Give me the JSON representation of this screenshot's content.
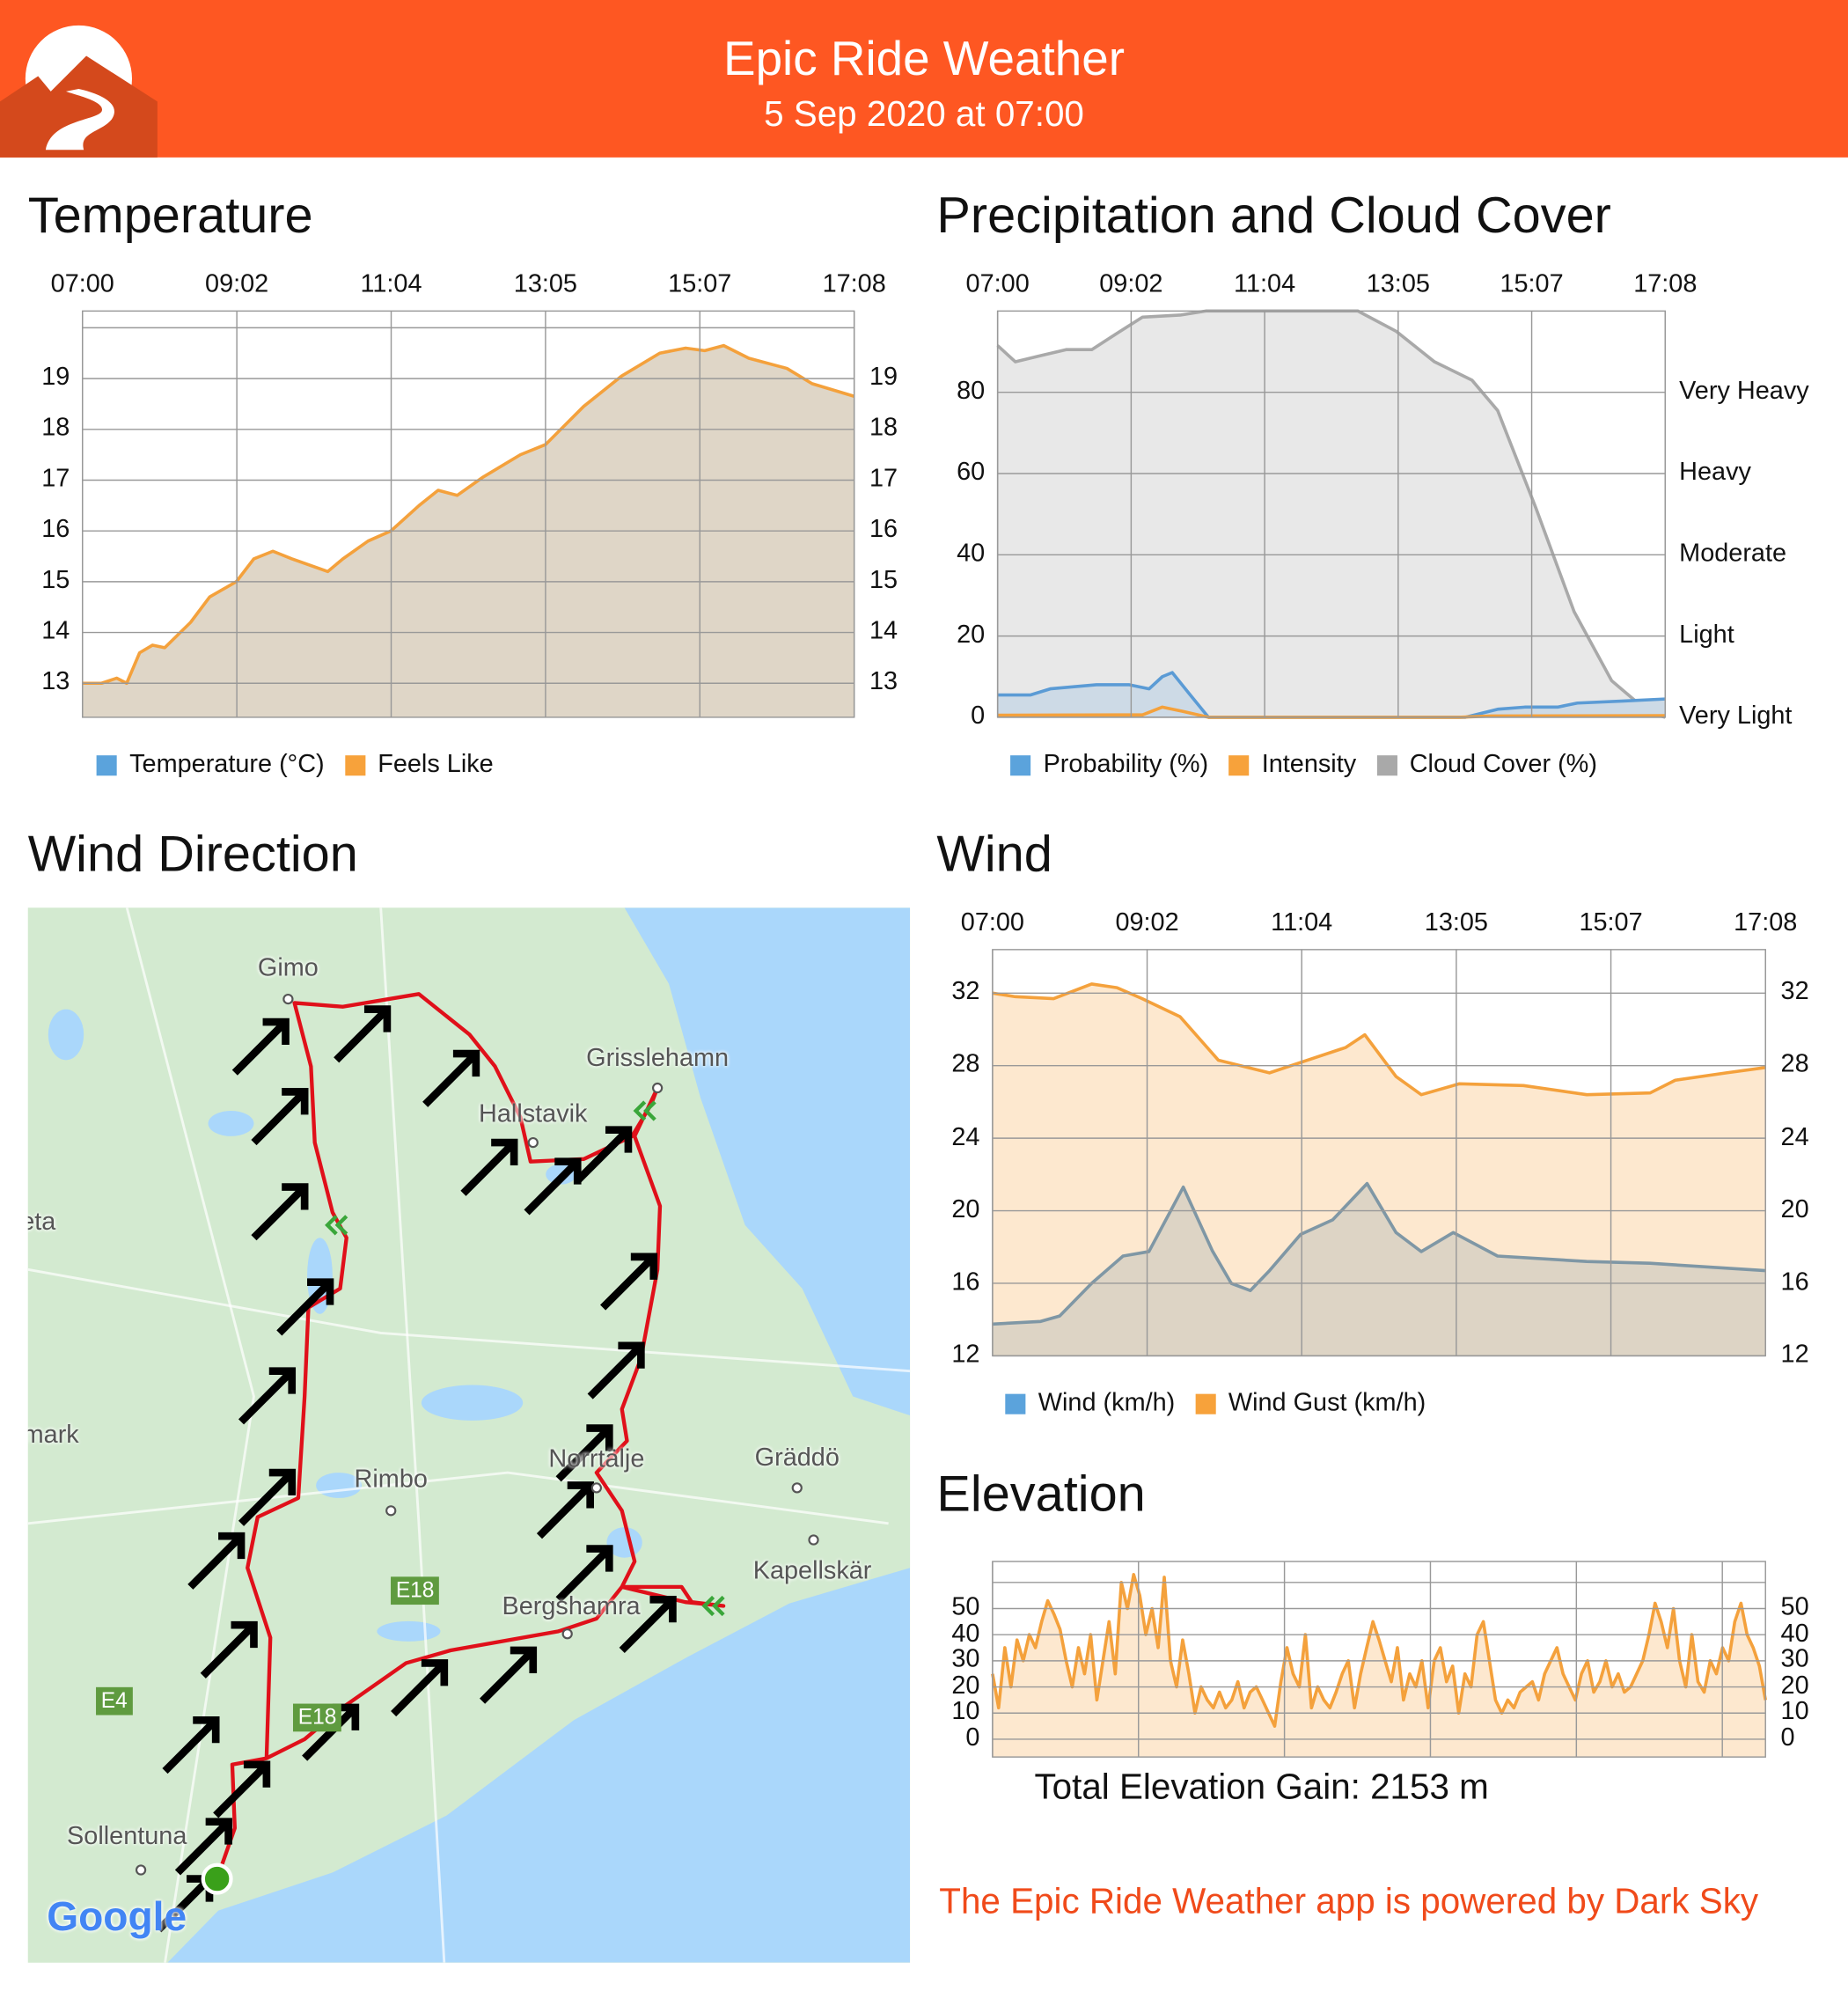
{
  "header": {
    "title": "Epic Ride Weather",
    "subtitle": "5 Sep 2020 at 07:00",
    "color": "#fe5722"
  },
  "time_labels": [
    "07:00",
    "09:02",
    "11:04",
    "13:05",
    "15:07",
    "17:08"
  ],
  "chart_data": [
    {
      "id": "temperature",
      "type": "area",
      "title": "Temperature",
      "x_unit": "hours since 07:00",
      "xlim": [
        0,
        10.133
      ],
      "ylim": [
        12.33,
        20.33
      ],
      "yticks": [
        13,
        14,
        15,
        16,
        17,
        18,
        19
      ],
      "grid": true,
      "legend": [
        {
          "label": "Temperature (°C)",
          "color": "#5ba3dc"
        },
        {
          "label": "Feels Like",
          "color": "#f7a23b"
        }
      ],
      "legend_position": "bottom",
      "series": [
        {
          "name": "Feels Like",
          "color": "#f4a13c",
          "fill": "#dfd6c7",
          "points": [
            [
              0,
              13.0
            ],
            [
              0.25,
              13.0
            ],
            [
              0.45,
              13.1
            ],
            [
              0.58,
              13.0
            ],
            [
              0.75,
              13.6
            ],
            [
              0.92,
              13.75
            ],
            [
              1.08,
              13.7
            ],
            [
              1.42,
              14.2
            ],
            [
              1.67,
              14.7
            ],
            [
              2.02,
              15.0
            ],
            [
              2.25,
              15.45
            ],
            [
              2.5,
              15.6
            ],
            [
              2.75,
              15.45
            ],
            [
              3.22,
              15.2
            ],
            [
              3.42,
              15.45
            ],
            [
              3.75,
              15.8
            ],
            [
              4.05,
              16.0
            ],
            [
              4.42,
              16.5
            ],
            [
              4.67,
              16.8
            ],
            [
              4.92,
              16.7
            ],
            [
              5.25,
              17.05
            ],
            [
              5.75,
              17.5
            ],
            [
              6.08,
              17.7
            ],
            [
              6.58,
              18.45
            ],
            [
              7.08,
              19.05
            ],
            [
              7.58,
              19.5
            ],
            [
              7.92,
              19.6
            ],
            [
              8.17,
              19.55
            ],
            [
              8.42,
              19.65
            ],
            [
              8.75,
              19.4
            ],
            [
              9.25,
              19.2
            ],
            [
              9.58,
              18.9
            ],
            [
              10.133,
              18.65
            ]
          ]
        }
      ]
    },
    {
      "id": "precipitation",
      "type": "area",
      "title": "Precipitation and Cloud Cover",
      "x_unit": "hours since 07:00",
      "xlim": [
        0,
        10.133
      ],
      "ylim": [
        0,
        100
      ],
      "yticks": [
        0,
        20,
        40,
        60,
        80
      ],
      "grid": true,
      "right_ticks": [
        "Very Light",
        "Light",
        "Moderate",
        "Heavy",
        "Very Heavy"
      ],
      "legend": [
        {
          "label": "Probability (%)",
          "color": "#5ba3dc"
        },
        {
          "label": "Intensity",
          "color": "#f7a23b"
        },
        {
          "label": "Cloud Cover (%)",
          "color": "#a9a9a9"
        }
      ],
      "legend_position": "bottom",
      "series": [
        {
          "name": "Cloud Cover (%)",
          "color": "#a9a9a9",
          "fill": "#e8e8e8",
          "points": [
            [
              0,
              91.5
            ],
            [
              0.27,
              87.5
            ],
            [
              0.65,
              89
            ],
            [
              1.04,
              90.5
            ],
            [
              1.43,
              90.5
            ],
            [
              1.81,
              94.5
            ],
            [
              2.2,
              98.5
            ],
            [
              2.77,
              99
            ],
            [
              3.16,
              100
            ],
            [
              5.47,
              100
            ],
            [
              6.05,
              95
            ],
            [
              6.63,
              87.5
            ],
            [
              7.2,
              83
            ],
            [
              7.59,
              75.5
            ],
            [
              8.17,
              51.5
            ],
            [
              8.75,
              26
            ],
            [
              9.32,
              9
            ],
            [
              9.9,
              1
            ],
            [
              10.133,
              0
            ]
          ]
        },
        {
          "name": "Probability (%)",
          "color": "#5b9bd5",
          "fill": "#cddae6",
          "points": [
            [
              0,
              5.5
            ],
            [
              0.5,
              5.5
            ],
            [
              0.8,
              7
            ],
            [
              1.5,
              8
            ],
            [
              2.0,
              8
            ],
            [
              2.3,
              7
            ],
            [
              2.5,
              10
            ],
            [
              2.65,
              11
            ],
            [
              2.9,
              6
            ],
            [
              3.2,
              0
            ],
            [
              7.1,
              0
            ],
            [
              7.6,
              2
            ],
            [
              8.0,
              2.5
            ],
            [
              8.5,
              2.5
            ],
            [
              8.8,
              3.5
            ],
            [
              9.5,
              4
            ],
            [
              10.133,
              4.5
            ]
          ]
        },
        {
          "name": "Intensity",
          "color": "#f4a13c",
          "fill": "none",
          "points": [
            [
              0,
              0.5
            ],
            [
              2.2,
              0.6
            ],
            [
              2.5,
              2.5
            ],
            [
              2.8,
              1.5
            ],
            [
              3.2,
              0
            ],
            [
              7.0,
              0
            ],
            [
              7.5,
              0.3
            ],
            [
              10.133,
              0.4
            ]
          ]
        }
      ]
    },
    {
      "id": "wind",
      "type": "area",
      "title": "Wind",
      "x_unit": "hours since 07:00",
      "xlim": [
        0,
        10.133
      ],
      "ylim": [
        12,
        34.4
      ],
      "yticks": [
        12,
        16,
        20,
        24,
        28,
        32
      ],
      "grid": true,
      "legend": [
        {
          "label": "Wind (km/h)",
          "color": "#5ba3dc"
        },
        {
          "label": "Wind Gust (km/h)",
          "color": "#f7a23b"
        }
      ],
      "legend_position": "bottom",
      "series": [
        {
          "name": "Wind Gust (km/h)",
          "color": "#f4a13c",
          "fill": "#fde8cf",
          "points": [
            [
              0,
              32
            ],
            [
              0.3,
              31.8
            ],
            [
              0.8,
              31.7
            ],
            [
              1.3,
              32.5
            ],
            [
              1.63,
              32.3
            ],
            [
              1.96,
              31.7
            ],
            [
              2.46,
              30.7
            ],
            [
              2.96,
              28.3
            ],
            [
              3.63,
              27.6
            ],
            [
              4.13,
              28.3
            ],
            [
              4.63,
              29
            ],
            [
              4.88,
              29.7
            ],
            [
              5.29,
              27.4
            ],
            [
              5.62,
              26.4
            ],
            [
              6.12,
              27
            ],
            [
              6.96,
              26.9
            ],
            [
              7.79,
              26.4
            ],
            [
              8.62,
              26.5
            ],
            [
              8.95,
              27.2
            ],
            [
              9.62,
              27.6
            ],
            [
              10.133,
              27.9
            ]
          ]
        },
        {
          "name": "Wind (km/h)",
          "color": "#7f97a5",
          "fill": "#ddd4c5",
          "points": [
            [
              0,
              13.75
            ],
            [
              0.63,
              13.9
            ],
            [
              0.88,
              14.2
            ],
            [
              1.3,
              16
            ],
            [
              1.71,
              17.5
            ],
            [
              2.05,
              17.75
            ],
            [
              2.5,
              21.3
            ],
            [
              2.88,
              17.8
            ],
            [
              3.13,
              16
            ],
            [
              3.38,
              15.6
            ],
            [
              3.63,
              16.7
            ],
            [
              4.04,
              18.7
            ],
            [
              4.46,
              19.5
            ],
            [
              4.91,
              21.5
            ],
            [
              5.29,
              18.8
            ],
            [
              5.62,
              17.75
            ],
            [
              6.04,
              18.8
            ],
            [
              6.62,
              17.5
            ],
            [
              7.79,
              17.2
            ],
            [
              8.62,
              17.1
            ],
            [
              10.133,
              16.7
            ]
          ]
        }
      ]
    },
    {
      "id": "elevation",
      "type": "area",
      "title": "Elevation",
      "ylim": [
        -6.8,
        68
      ],
      "yticks": [
        0,
        10,
        20,
        30,
        40,
        50
      ],
      "grid": true,
      "summary": "Total Elevation Gain: 2153 m",
      "series": [
        {
          "name": "Elevation (m)",
          "color": "#f4a13c",
          "fill": "#fde8cf",
          "values": [
            25,
            12,
            35,
            20,
            38,
            30,
            40,
            35,
            45,
            53,
            48,
            42,
            30,
            20,
            35,
            25,
            40,
            15,
            30,
            45,
            25,
            60,
            50,
            63,
            55,
            40,
            50,
            35,
            62,
            30,
            20,
            38,
            25,
            10,
            20,
            15,
            12,
            18,
            12,
            15,
            22,
            12,
            18,
            20,
            15,
            10,
            5,
            22,
            35,
            25,
            20,
            40,
            12,
            20,
            15,
            12,
            18,
            25,
            30,
            12,
            25,
            35,
            45,
            38,
            30,
            22,
            35,
            15,
            25,
            20,
            30,
            12,
            30,
            35,
            22,
            28,
            10,
            25,
            20,
            40,
            45,
            30,
            15,
            10,
            15,
            12,
            18,
            20,
            22,
            15,
            25,
            30,
            35,
            25,
            20,
            15,
            25,
            30,
            18,
            22,
            30,
            20,
            25,
            18,
            20,
            25,
            30,
            40,
            52,
            45,
            35,
            50,
            30,
            20,
            40,
            22,
            18,
            30,
            25,
            35,
            30,
            45,
            52,
            40,
            35,
            28,
            15
          ]
        }
      ]
    }
  ],
  "wind_direction": {
    "title": "Wind Direction",
    "places": [
      "Gimo",
      "Grisslehamn",
      "Hallstavik",
      "eta",
      "mark",
      "Rimbo",
      "Norrtälje",
      "Gräddö",
      "Kapellskär",
      "Bergshamra",
      "Sollentuna"
    ],
    "roads": [
      "E18",
      "E4",
      "E18"
    ],
    "attribution": "Google"
  },
  "footer": {
    "text": "The Epic Ride Weather app is powered by Dark Sky",
    "color": "#f04a1a"
  }
}
